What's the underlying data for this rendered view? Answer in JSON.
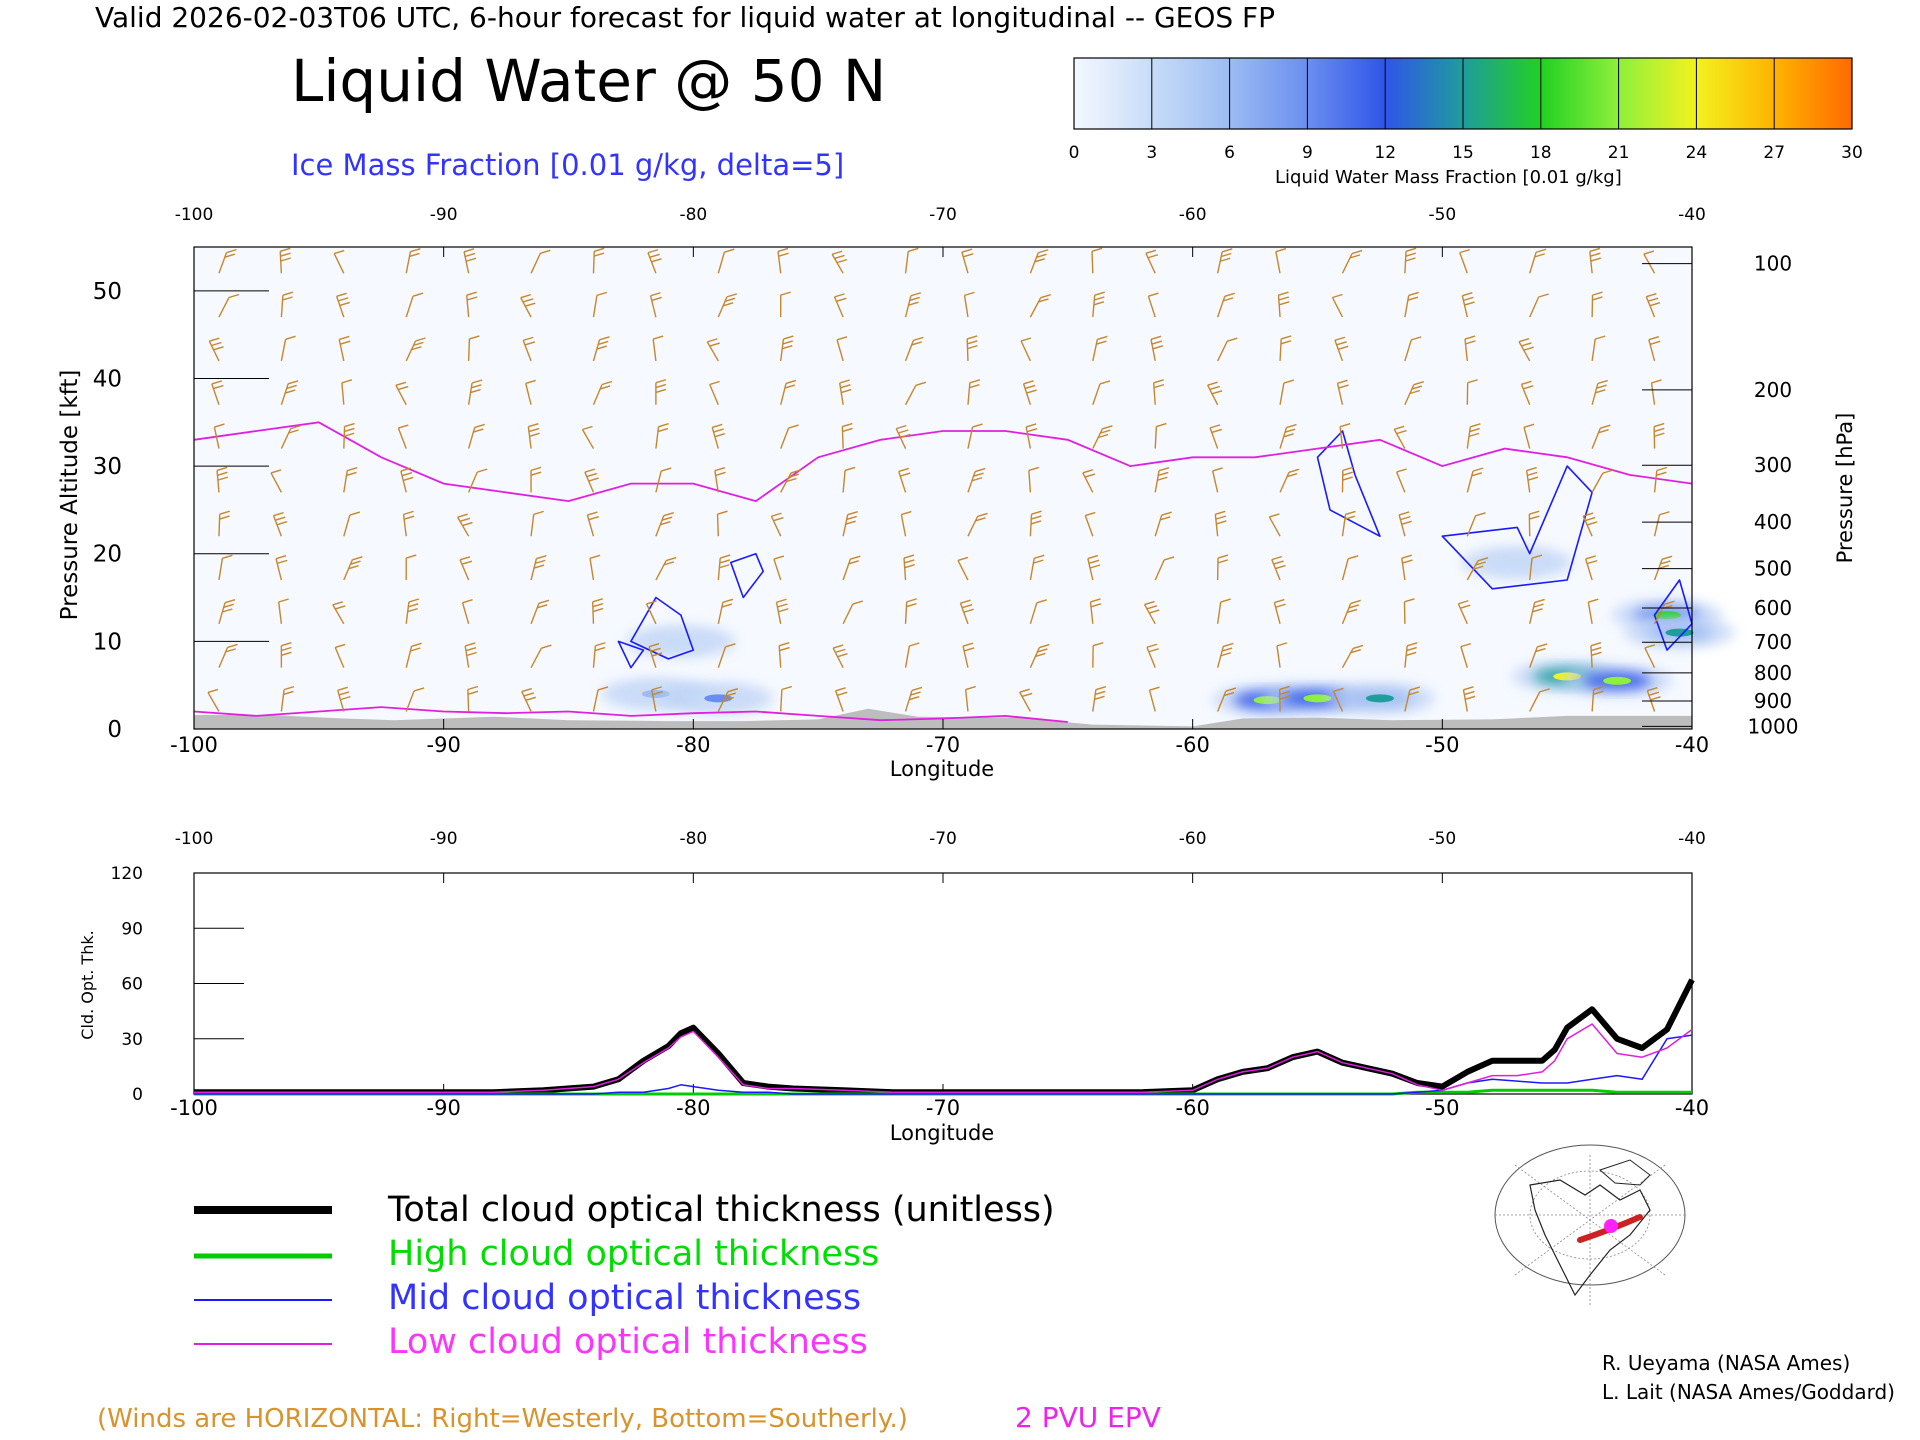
{
  "header": {
    "valid_line": "Valid 2026-02-03T06 UTC, 6-hour forecast for liquid water at longitudinal -- GEOS FP",
    "title": "Liquid Water @ 50 N",
    "subtitle": "Ice Mass Fraction [0.01 g/kg, delta=5]"
  },
  "colorbar": {
    "label": "Liquid Water Mass Fraction [0.01 g/kg]",
    "ticks": [
      "0",
      "3",
      "6",
      "9",
      "12",
      "15",
      "18",
      "21",
      "24",
      "27",
      "30"
    ],
    "colors": [
      "#f4f8ff",
      "#c8dcf8",
      "#9cbcf2",
      "#6a8ef0",
      "#2f55e8",
      "#1f9c9c",
      "#22d022",
      "#8ef03c",
      "#f2f21e",
      "#ffb300",
      "#ff6a00"
    ]
  },
  "chart_data": [
    {
      "type": "heatmap",
      "title": "Liquid Water @ 50 N",
      "xlabel": "Longitude",
      "ylabel": "Pressure Altitude [kft]",
      "y2label": "Pressure [hPa]",
      "xlim": [
        -100,
        -40
      ],
      "ylim": [
        0,
        55
      ],
      "x_ticks": [
        "-100",
        "-90",
        "-80",
        "-70",
        "-60",
        "-50",
        "-40"
      ],
      "y_ticks": [
        "0",
        "10",
        "20",
        "30",
        "40",
        "50"
      ],
      "pressure_ticks": [
        "100",
        "200",
        "300",
        "400",
        "500",
        "600",
        "700",
        "800",
        "900",
        "1000"
      ],
      "pressure_tick_kft": [
        53.1,
        38.7,
        30.1,
        23.6,
        18.3,
        13.8,
        9.9,
        6.4,
        3.2,
        0.3
      ],
      "x_values": [
        -100,
        -97.5,
        -95,
        -92.5,
        -90,
        -87.5,
        -85,
        -82.5,
        -80,
        -77.5,
        -75,
        -72.5,
        -70,
        -67.5,
        -65,
        -62.5,
        -60,
        -57.5,
        -55,
        -52.5,
        -50,
        -47.5,
        -45,
        -42.5,
        -40
      ],
      "epv_2pvu_kft": [
        33,
        34,
        35,
        31,
        28,
        27,
        26,
        28,
        28,
        26,
        31,
        33,
        34,
        34,
        33,
        30,
        31,
        31,
        32,
        33,
        30,
        32,
        31,
        29,
        28
      ],
      "liquid_water_blobs": [
        {
          "lon": -81.5,
          "kft": 4,
          "value": 6
        },
        {
          "lon": -79,
          "kft": 3.5,
          "value": 8
        },
        {
          "lon": -57,
          "kft": 3.3,
          "value": 20
        },
        {
          "lon": -55,
          "kft": 3.5,
          "value": 22
        },
        {
          "lon": -52.5,
          "kft": 3.5,
          "value": 14
        },
        {
          "lon": -45,
          "kft": 6,
          "value": 24
        },
        {
          "lon": -43,
          "kft": 5.5,
          "value": 20
        },
        {
          "lon": -41,
          "kft": 13,
          "value": 18
        },
        {
          "lon": -40.5,
          "kft": 11,
          "value": 15
        },
        {
          "lon": -47,
          "kft": 19,
          "value": 4
        },
        {
          "lon": -80.5,
          "kft": 10,
          "value": 3
        }
      ],
      "ice_contours": [
        {
          "lon": [
            -82.5,
            -81.5,
            -80.5,
            -80,
            -81,
            -82.5
          ],
          "kft": [
            10,
            15,
            13,
            9,
            8,
            10
          ]
        },
        {
          "lon": [
            -83,
            -82,
            -82.5,
            -83
          ],
          "kft": [
            10,
            9,
            7,
            10
          ]
        },
        {
          "lon": [
            -78.5,
            -77.5,
            -77.2,
            -78,
            -78.5
          ],
          "kft": [
            19,
            20,
            18,
            15,
            19
          ]
        },
        {
          "lon": [
            -55,
            -54,
            -53.5,
            -52.5,
            -54.5,
            -55
          ],
          "kft": [
            31,
            34,
            29,
            22,
            25,
            31
          ]
        },
        {
          "lon": [
            -50,
            -47,
            -46.5,
            -45,
            -44,
            -45,
            -48,
            -50
          ],
          "kft": [
            22,
            23,
            20,
            30,
            27,
            17,
            16,
            22
          ]
        },
        {
          "lon": [
            -41.5,
            -40.5,
            -40,
            -41,
            -41.5
          ],
          "kft": [
            13,
            17,
            12,
            9,
            13
          ]
        }
      ],
      "series": [
        {
          "name": "2 PVU EPV",
          "color": "#e020e0"
        }
      ],
      "legend_note": "(Winds are HORIZONTAL: Right=Westerly, Bottom=Southerly.)",
      "epv_label": "2 PVU EPV"
    },
    {
      "type": "line",
      "xlabel": "Longitude",
      "ylabel": "Cld. Opt. Thk.",
      "xlim": [
        -100,
        -40
      ],
      "ylim": [
        0,
        120
      ],
      "x_ticks": [
        "-100",
        "-90",
        "-80",
        "-70",
        "-60",
        "-50",
        "-40"
      ],
      "y_ticks": [
        "0",
        "30",
        "60",
        "90",
        "120"
      ],
      "x": [
        -100,
        -98,
        -96,
        -94,
        -92,
        -90,
        -88,
        -86,
        -84,
        -83,
        -82,
        -81,
        -80.5,
        -80,
        -79,
        -78,
        -77,
        -76,
        -74,
        -72,
        -70,
        -68,
        -66,
        -64,
        -62,
        -60,
        -59,
        -58,
        -57,
        -56,
        -55,
        -54,
        -53,
        -52,
        -51,
        -50,
        -49,
        -48,
        -47,
        -46,
        -45.5,
        -45,
        -44,
        -43,
        -42,
        -41,
        -40
      ],
      "series": [
        {
          "name": "Total cloud optical thickness (unitless)",
          "color": "#000000",
          "values": [
            1,
            1,
            1,
            1,
            1,
            1,
            1,
            2,
            4,
            8,
            18,
            26,
            33,
            36,
            22,
            6,
            4,
            3,
            2,
            1,
            1,
            1,
            1,
            1,
            1,
            2,
            8,
            12,
            14,
            20,
            23,
            17,
            14,
            11,
            6,
            4,
            12,
            18,
            18,
            18,
            24,
            36,
            46,
            30,
            25,
            35,
            62
          ]
        },
        {
          "name": "High cloud optical thickness",
          "color": "#00cc00",
          "values": [
            0,
            0,
            0,
            0,
            0,
            0,
            0,
            0,
            0,
            0,
            0,
            0,
            0,
            0,
            0,
            0,
            0,
            0,
            0,
            0,
            0,
            0,
            0,
            0,
            0,
            0,
            0,
            0,
            0,
            0,
            0,
            0,
            0,
            0,
            1,
            1,
            1,
            2,
            2,
            2,
            2,
            2,
            2,
            1,
            1,
            1,
            1
          ]
        },
        {
          "name": "Mid cloud optical thickness",
          "color": "#1a1aff",
          "values": [
            0,
            0,
            0,
            0,
            0,
            0,
            0,
            0,
            0,
            1,
            1,
            3,
            5,
            4,
            2,
            1,
            1,
            0,
            0,
            0,
            0,
            0,
            0,
            0,
            0,
            0,
            0,
            0,
            0,
            0,
            0,
            0,
            0,
            0,
            1,
            2,
            6,
            8,
            7,
            6,
            6,
            6,
            8,
            10,
            8,
            30,
            32
          ]
        },
        {
          "name": "Low cloud optical thickness",
          "color": "#e020e0",
          "values": [
            1,
            1,
            1,
            1,
            1,
            1,
            1,
            2,
            4,
            8,
            17,
            25,
            31,
            34,
            20,
            5,
            3,
            3,
            2,
            1,
            1,
            1,
            1,
            1,
            1,
            2,
            8,
            12,
            14,
            20,
            23,
            17,
            14,
            11,
            5,
            2,
            6,
            10,
            10,
            12,
            18,
            30,
            38,
            22,
            20,
            25,
            35
          ]
        }
      ]
    }
  ],
  "legend": {
    "items": [
      {
        "label": "Total cloud optical thickness (unitless)",
        "color": "#000000"
      },
      {
        "label": "High cloud optical thickness",
        "color": "#00cc00"
      },
      {
        "label": "Mid cloud optical thickness",
        "color": "#1a1aff"
      },
      {
        "label": "Low cloud optical thickness",
        "color": "#e020e0"
      }
    ]
  },
  "credits": {
    "line1": "R. Ueyama (NASA Ames)",
    "line2": "L. Lait (NASA Ames/Goddard)"
  },
  "colors": {
    "wind_barb": "#c8862a",
    "epv": "#e020e0",
    "ice_contour": "#1a1aff",
    "terrain": "#bdbdbd",
    "wind_note": "#d9932d"
  }
}
